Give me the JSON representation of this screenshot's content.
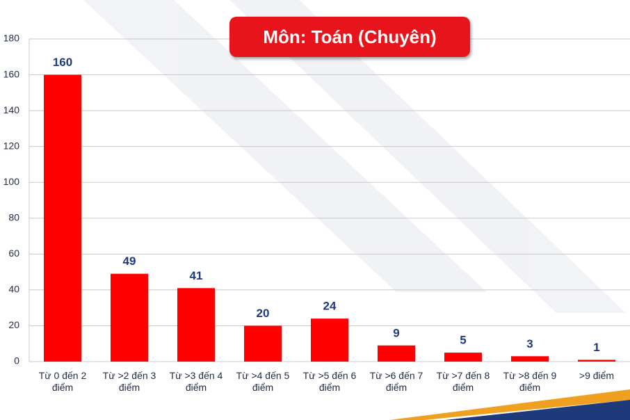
{
  "chart_data": {
    "type": "bar",
    "title": "Môn: Toán (Chuyên)",
    "categories": [
      "Từ 0 đến 2 điểm",
      "Từ >2 đến 3 điểm",
      "Từ >3 đến 4 điểm",
      "Từ >4 đến 5 điểm",
      "Từ >5 đến 6 điểm",
      "Từ >6 đến 7 điểm",
      "Từ >7 đến 8 điểm",
      "Từ >8 đến 9 điểm",
      ">9 điểm"
    ],
    "values": [
      160,
      49,
      41,
      20,
      24,
      9,
      5,
      3,
      1
    ],
    "color": "#ff0000",
    "ylim": [
      0,
      180
    ],
    "yticks": [
      0,
      20,
      40,
      60,
      80,
      100,
      120,
      140,
      160,
      180
    ],
    "grid": true
  }
}
